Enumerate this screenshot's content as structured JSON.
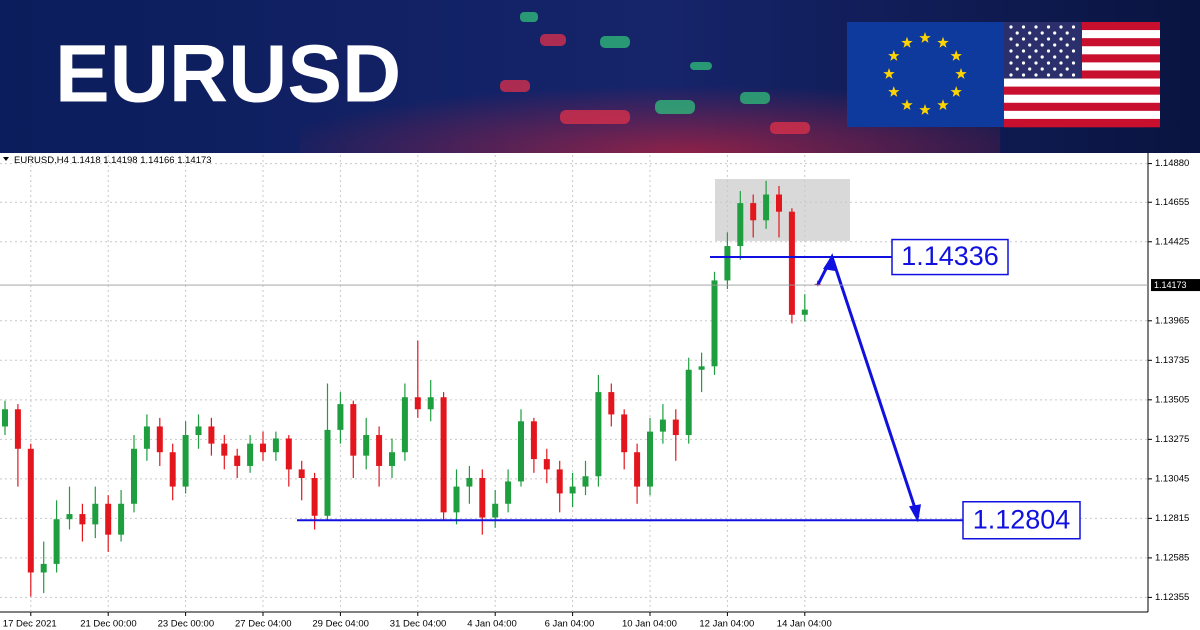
{
  "banner": {
    "title": "EURUSD"
  },
  "chart_data": {
    "type": "candlestick",
    "symbol": "EURUSD,H4",
    "categories": [
      null,
      null,
      "17 Dec 2021",
      null,
      null,
      null,
      null,
      null,
      "21 Dec 00:00",
      null,
      null,
      null,
      null,
      null,
      "23 Dec 00:00",
      null,
      null,
      null,
      null,
      null,
      "27 Dec 04:00",
      null,
      null,
      null,
      null,
      null,
      "29 Dec 04:00",
      null,
      null,
      null,
      null,
      null,
      "31 Dec 04:00",
      null,
      null,
      null,
      null,
      null,
      "4 Jan 04:00",
      null,
      null,
      null,
      null,
      null,
      "6 Jan 04:00",
      null,
      null,
      null,
      null,
      null,
      "10 Jan 04:00",
      null,
      null,
      null,
      null,
      null,
      "12 Jan 04:00",
      null,
      null,
      null,
      null,
      null,
      "14 Jan 04:00",
      null
    ],
    "open": [
      1.1335,
      1.1345,
      1.1322,
      1.125,
      1.1255,
      1.1281,
      1.1284,
      1.1278,
      1.129,
      1.1272,
      1.129,
      1.1322,
      1.1335,
      1.132,
      1.13,
      1.133,
      1.1335,
      1.1325,
      1.1318,
      1.1312,
      1.1325,
      1.132,
      1.1328,
      1.131,
      1.1305,
      1.1283,
      1.1333,
      1.1348,
      1.1318,
      1.133,
      1.1312,
      1.132,
      1.1352,
      1.1345,
      1.1352,
      1.1285,
      1.13,
      1.1305,
      1.1282,
      1.129,
      1.1303,
      1.1338,
      1.1316,
      1.131,
      1.1296,
      1.13,
      1.1306,
      1.1355,
      1.1342,
      1.132,
      1.13,
      1.1332,
      1.1339,
      1.133,
      1.1368,
      1.137,
      1.142,
      1.144,
      1.1465,
      1.1455,
      1.147,
      1.146,
      1.14,
      1.1418
    ],
    "high": [
      1.135,
      1.1348,
      1.1325,
      1.1268,
      1.1292,
      1.13,
      1.129,
      1.13,
      1.1295,
      1.1298,
      1.133,
      1.1342,
      1.134,
      1.1325,
      1.1338,
      1.1342,
      1.134,
      1.133,
      1.1322,
      1.133,
      1.1332,
      1.1332,
      1.133,
      1.1315,
      1.1308,
      1.136,
      1.1355,
      1.135,
      1.134,
      1.1335,
      1.1328,
      1.136,
      1.1385,
      1.1362,
      1.1355,
      1.131,
      1.1312,
      1.131,
      1.1298,
      1.131,
      1.1345,
      1.134,
      1.1322,
      1.1315,
      1.1308,
      1.1315,
      1.1365,
      1.136,
      1.1345,
      1.1325,
      1.134,
      1.1348,
      1.1345,
      1.1375,
      1.1378,
      1.1425,
      1.1448,
      1.1472,
      1.147,
      1.1478,
      1.1475,
      1.1462,
      1.1412,
      1.14198
    ],
    "low": [
      1.133,
      1.13,
      1.1236,
      1.1238,
      1.125,
      1.1275,
      1.1268,
      1.127,
      1.1262,
      1.1268,
      1.1285,
      1.1315,
      1.1312,
      1.1292,
      1.1296,
      1.1322,
      1.1318,
      1.131,
      1.1305,
      1.1308,
      1.1315,
      1.1315,
      1.13,
      1.1292,
      1.1275,
      1.128,
      1.1325,
      1.1305,
      1.131,
      1.13,
      1.1305,
      1.1315,
      1.134,
      1.1338,
      1.128,
      1.1278,
      1.129,
      1.1272,
      1.1276,
      1.1285,
      1.13,
      1.1308,
      1.1302,
      1.1285,
      1.1288,
      1.1295,
      1.13,
      1.1335,
      1.131,
      1.129,
      1.1295,
      1.1325,
      1.1315,
      1.1325,
      1.1355,
      1.1365,
      1.1415,
      1.1432,
      1.1445,
      1.145,
      1.1445,
      1.1395,
      1.1396,
      1.14166
    ],
    "close": [
      1.1345,
      1.1322,
      1.125,
      1.1255,
      1.1281,
      1.1284,
      1.1278,
      1.129,
      1.1272,
      1.129,
      1.1322,
      1.1335,
      1.132,
      1.13,
      1.133,
      1.1335,
      1.1325,
      1.1318,
      1.1312,
      1.1325,
      1.132,
      1.1328,
      1.131,
      1.1305,
      1.1283,
      1.1333,
      1.1348,
      1.1318,
      1.133,
      1.1312,
      1.132,
      1.1352,
      1.1345,
      1.1352,
      1.1285,
      1.13,
      1.1305,
      1.1282,
      1.129,
      1.1303,
      1.1338,
      1.1316,
      1.131,
      1.1296,
      1.13,
      1.1306,
      1.1355,
      1.1342,
      1.132,
      1.13,
      1.1332,
      1.1339,
      1.133,
      1.1368,
      1.137,
      1.142,
      1.144,
      1.1465,
      1.1455,
      1.147,
      1.146,
      1.14,
      1.1403,
      1.14173
    ],
    "up_color": "#1e9e3e",
    "down_color": "#e3161e",
    "ylim": [
      1.1227,
      1.1493
    ],
    "yticks": [
      {
        "value": 1.1488,
        "label": "1.14880"
      },
      1.14655,
      1.14425,
      1.13965,
      1.13735,
      1.13505,
      1.13275,
      1.13045,
      1.12815,
      1.12585,
      1.12355
    ],
    "grid": true,
    "levels": [
      {
        "value": 1.14336,
        "color": "#1010e0"
      },
      {
        "value": 1.12804,
        "color": "#1010e0"
      }
    ],
    "zone": {
      "from": 1.1443,
      "to": 1.1479,
      "color": "#d9d9d9"
    }
  }
}
